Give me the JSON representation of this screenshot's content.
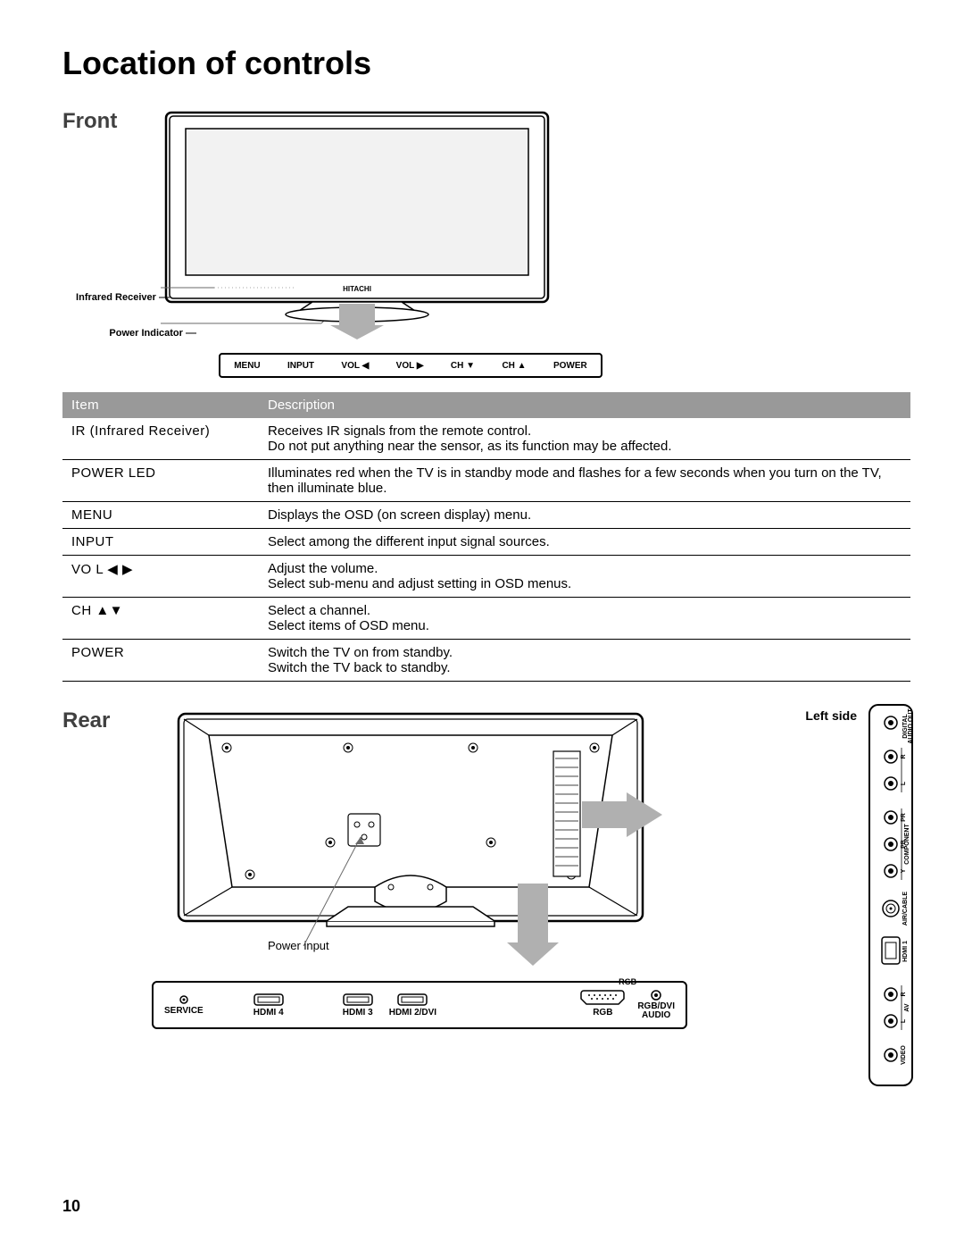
{
  "page": {
    "title": "Location of controls",
    "number": "10"
  },
  "front": {
    "heading": "Front",
    "ir_label": "Infrared Receiver",
    "power_indicator_label": "Power Indicator",
    "brand": "HITACHI",
    "buttons": [
      "MENU",
      "INPUT",
      "VOL ◀",
      "VOL ▶",
      "CH ▼",
      "CH ▲",
      "POWER"
    ]
  },
  "table": {
    "headers": {
      "item": "Item",
      "description": "Description"
    },
    "rows": [
      {
        "item": "IR (Infrared Receiver)",
        "desc": "Receives IR signals from the remote control.\nDo not put anything near the sensor, as its function may be affected."
      },
      {
        "item": "POWER LED",
        "desc": "Illuminates red when the TV is in standby mode and flashes for a few seconds when you turn on the TV, then illuminate blue."
      },
      {
        "item": "MENU",
        "desc": "Displays the OSD (on screen display) menu."
      },
      {
        "item": "INPUT",
        "desc": "Select among the different input signal sources."
      },
      {
        "item": "VO L ◀ ▶",
        "desc": "Adjust the volume.\nSelect sub-menu and adjust setting in OSD menus."
      },
      {
        "item": "CH ▲▼",
        "desc": "Select a channel.\nSelect items of OSD menu."
      },
      {
        "item": "POWER",
        "desc": "Switch the TV on from standby.\nSwitch the TV back to standby."
      }
    ]
  },
  "rear": {
    "heading": "Rear",
    "left_side_label": "Left side",
    "power_input_label": "Power input",
    "bottom_ports": {
      "service": "SERVICE",
      "hdmi4": "HDMI 4",
      "hdmi3": "HDMI 3",
      "hdmi2": "HDMI 2/DVI",
      "rgb_group": "RGB",
      "rgb": "RGB",
      "rgb_dvi_audio": "RGB/DVI\nAUDIO"
    },
    "side_ports": {
      "digital_audio": "DIGITAL\nAUDIO OUT\nCOAXIAL",
      "component": "COMPONENT",
      "r": "R",
      "l": "L",
      "pr": "PR",
      "pb": "PB",
      "y": "Y",
      "air_cable": "AIR/CABLE",
      "hdmi1": "HDMI 1",
      "av": "AV",
      "video": "VIDEO"
    }
  },
  "colors": {
    "header_bg": "#999999",
    "header_text": "#ffffff",
    "arrow_fill": "#b0b0b0",
    "section_title": "#404040"
  }
}
